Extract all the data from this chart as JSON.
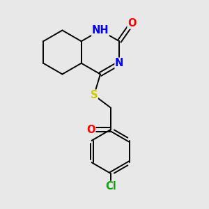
{
  "bg_color": "#e8e8e8",
  "atom_colors": {
    "N": "#0000ff",
    "O": "#ff0000",
    "S": "#cccc00",
    "Cl": "#00aa00",
    "H": "#008080",
    "C": "#000000"
  },
  "bond_color": "#000000",
  "font_size": 10.5,
  "lw": 1.4
}
